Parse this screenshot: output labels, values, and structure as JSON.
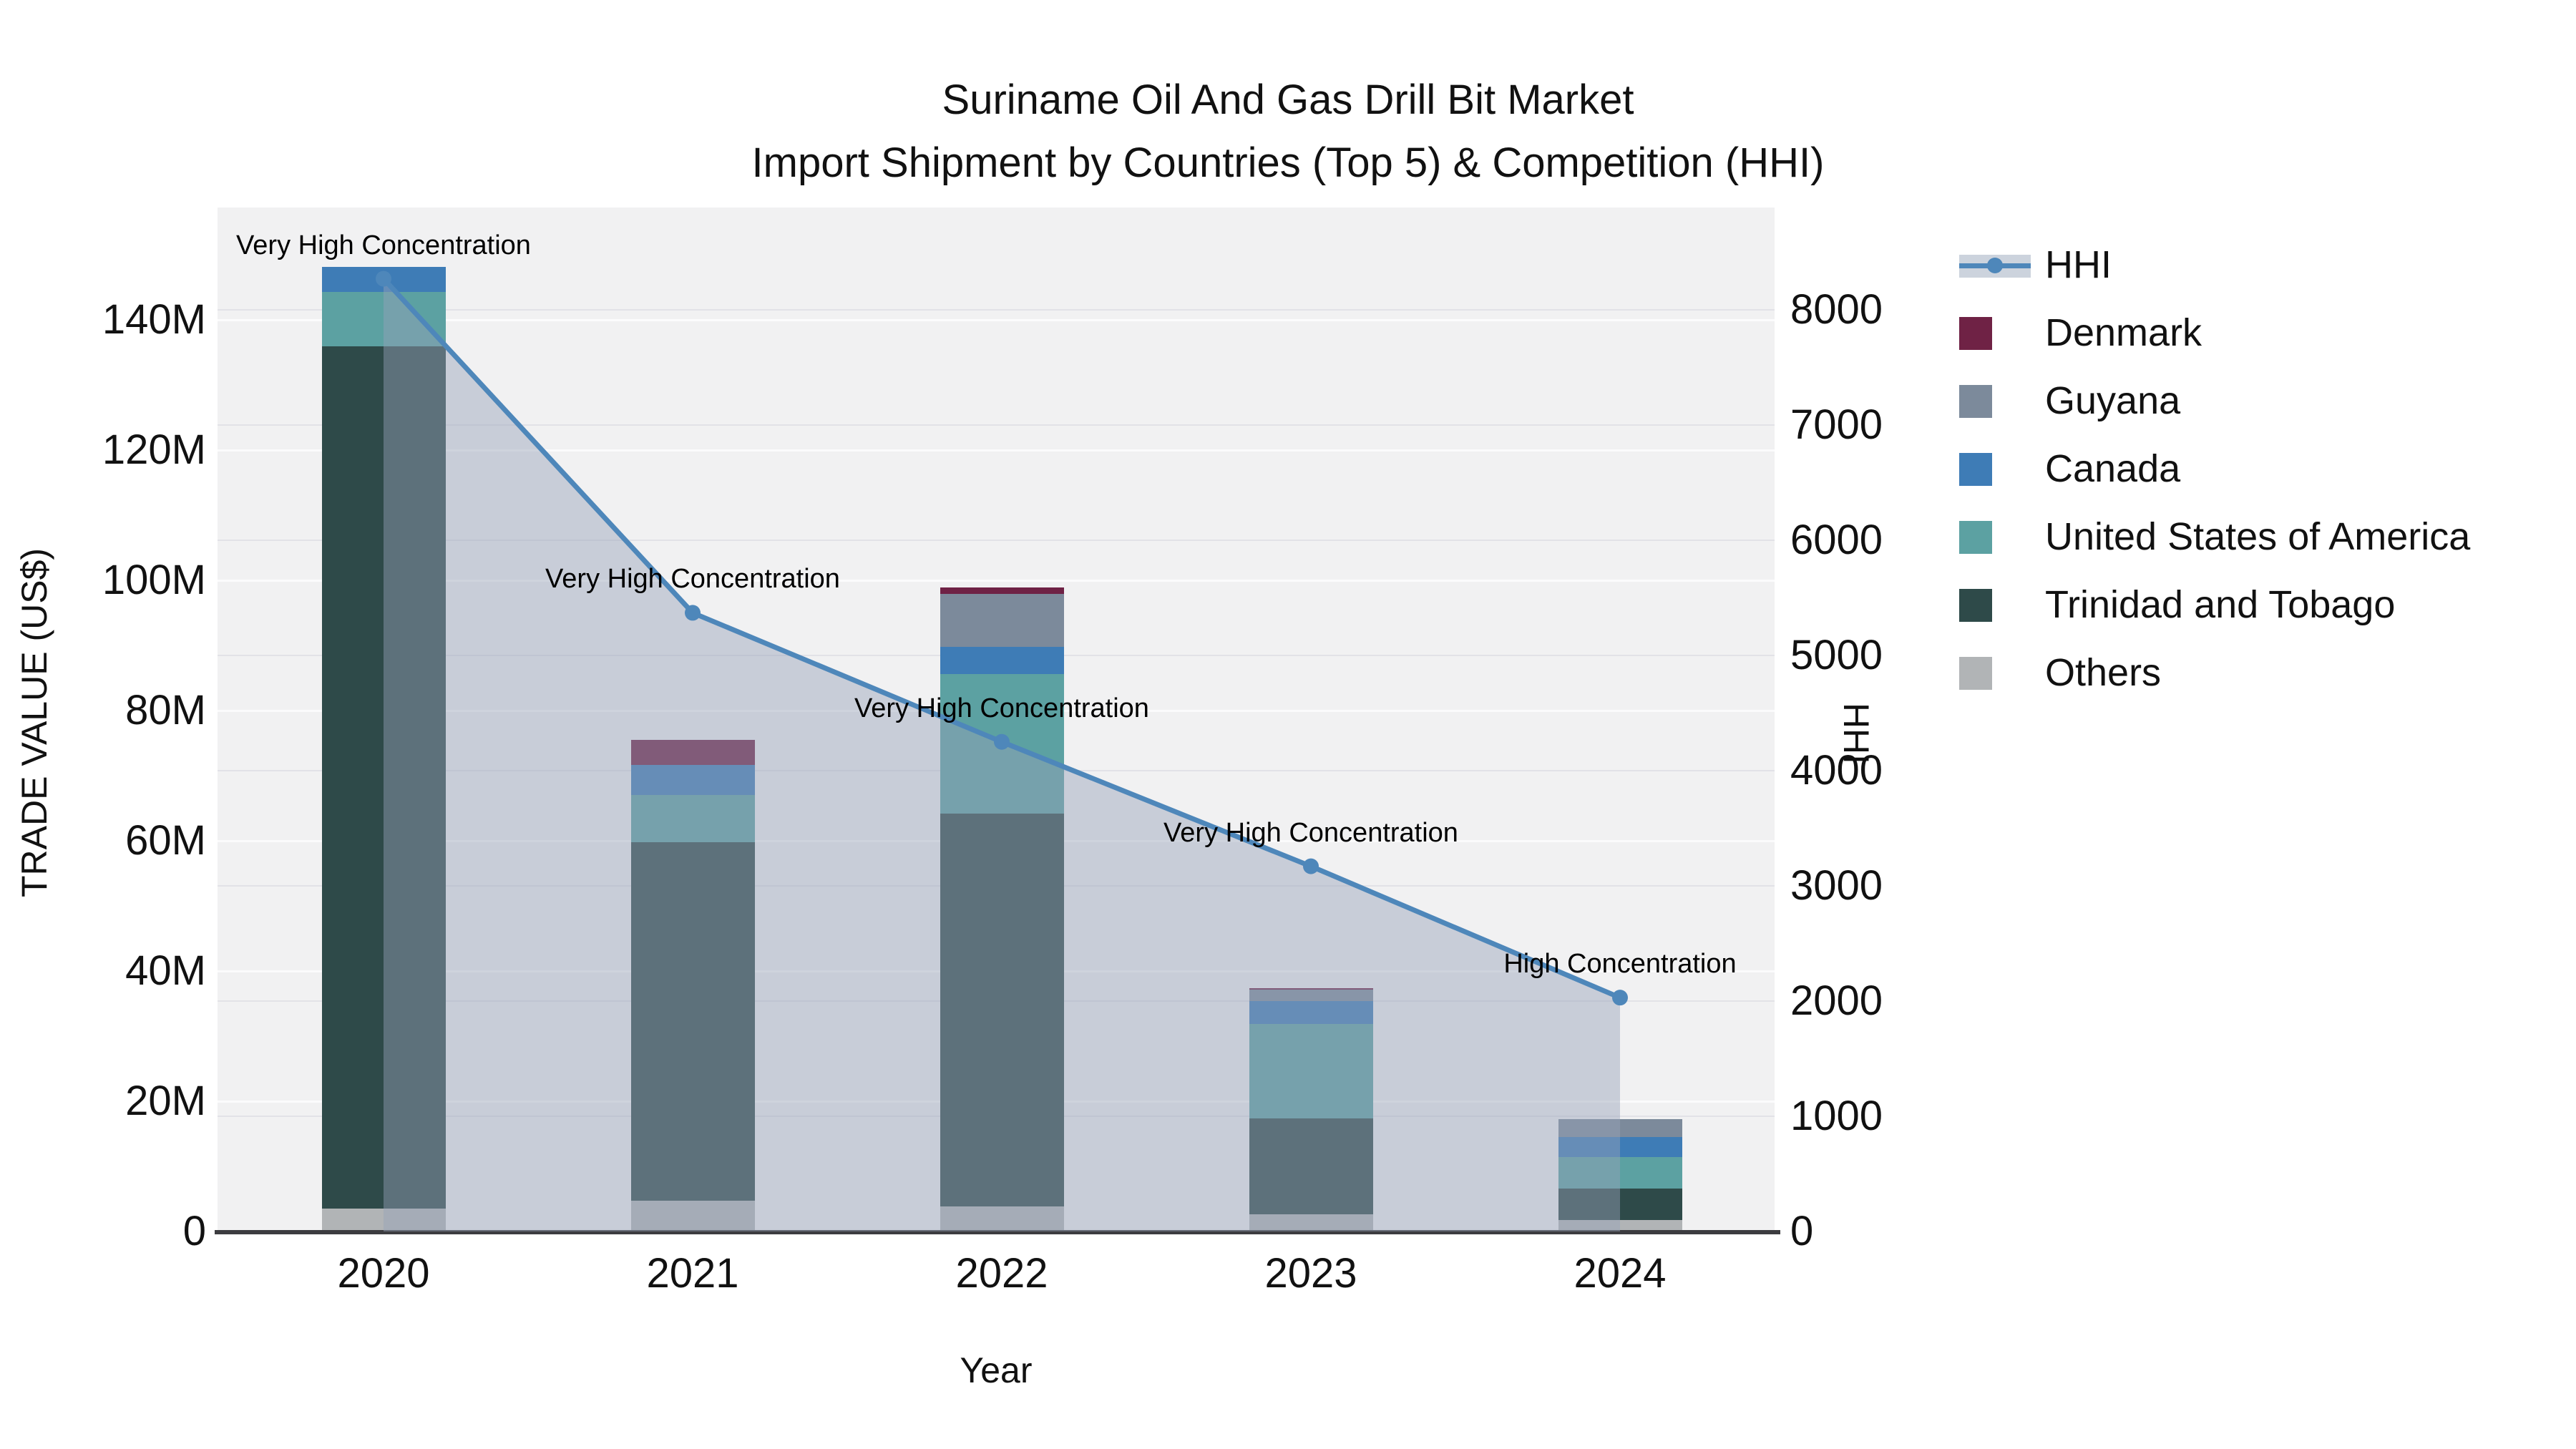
{
  "title": {
    "line1": "Suriname Oil And Gas Drill Bit Market",
    "line2": "Import Shipment by Countries (Top 5) & Competition (HHI)"
  },
  "axes": {
    "left_title": "TRADE VALUE (US$)",
    "left_ticks": [
      "0",
      "20M",
      "40M",
      "60M",
      "80M",
      "100M",
      "120M",
      "140M"
    ],
    "right_title": "HHI",
    "right_ticks": [
      "0",
      "1000",
      "2000",
      "3000",
      "4000",
      "5000",
      "6000",
      "7000",
      "8000"
    ],
    "x_title": "Year"
  },
  "legend": [
    {
      "label": "HHI",
      "type": "line",
      "color": "#4e87ba"
    },
    {
      "label": "Denmark",
      "type": "swatch",
      "color": "#6f2245"
    },
    {
      "label": "Guyana",
      "type": "swatch",
      "color": "#7c8a9b"
    },
    {
      "label": "Canada",
      "type": "swatch",
      "color": "#3e7cb6"
    },
    {
      "label": "United States of America",
      "type": "swatch",
      "color": "#5ca1a2"
    },
    {
      "label": "Trinidad and Tobago",
      "type": "swatch",
      "color": "#2e4a49"
    },
    {
      "label": "Others",
      "type": "swatch",
      "color": "#b1b4b6"
    }
  ],
  "chart_data": {
    "type": "bar",
    "subtype": "stacked-bars-with-line",
    "categories": [
      "2020",
      "2021",
      "2022",
      "2023",
      "2024"
    ],
    "value_unit": "million US$",
    "series": [
      {
        "name": "Denmark",
        "color": "#6f2245",
        "values": [
          0,
          3.9,
          1.0,
          0.3,
          0
        ]
      },
      {
        "name": "Guyana",
        "color": "#7c8a9b",
        "values": [
          0,
          0,
          8.1,
          1.7,
          2.7
        ]
      },
      {
        "name": "Canada",
        "color": "#3e7cb6",
        "values": [
          3.8,
          4.6,
          4.2,
          3.5,
          3.1
        ]
      },
      {
        "name": "United States of America",
        "color": "#5ca1a2",
        "values": [
          8.4,
          7.2,
          21.4,
          14.5,
          4.8
        ]
      },
      {
        "name": "Trinidad and Tobago",
        "color": "#2e4a49",
        "values": [
          132.4,
          55.1,
          60.4,
          14.8,
          4.8
        ]
      },
      {
        "name": "Others",
        "color": "#b1b4b6",
        "values": [
          3.5,
          4.7,
          3.8,
          2.6,
          1.8
        ]
      }
    ],
    "stack_order_bottom_to_top": [
      "Others",
      "Trinidad and Tobago",
      "United States of America",
      "Canada",
      "Guyana",
      "Denmark"
    ],
    "totals": [
      148.1,
      75.5,
      98.9,
      37.4,
      17.2
    ],
    "line_series": {
      "name": "HHI",
      "color": "#4e87ba",
      "fill_color": "rgba(150,162,185,0.45)",
      "values": [
        8270,
        5370,
        4250,
        3170,
        2030
      ]
    },
    "annotations": [
      "Very High Concentration",
      "Very High Concentration",
      "Very High Concentration",
      "Very High Concentration",
      "High Concentration"
    ],
    "title": "Suriname Oil And Gas Drill Bit Market Import Shipment by Countries (Top 5) & Competition (HHI)",
    "xlabel": "Year",
    "ylabel_left": "TRADE VALUE (US$)",
    "ylabel_right": "HHI",
    "ylim_left": [
      0,
      157
    ],
    "ylim_right": [
      0,
      8890
    ],
    "grid": true,
    "legend_position": "right"
  }
}
